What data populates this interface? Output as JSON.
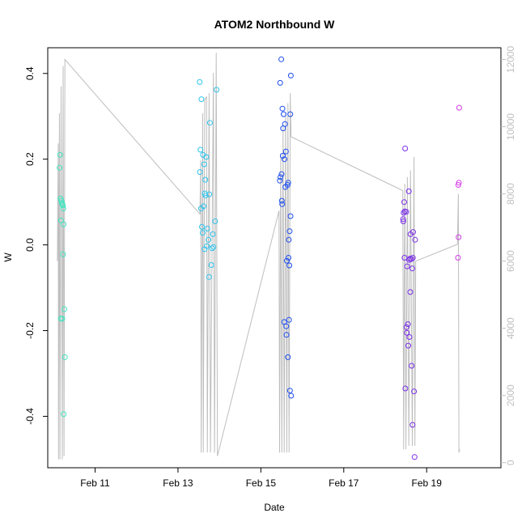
{
  "chart_data": {
    "type": "scatter",
    "title": "ATOM2 Northbound W",
    "xlabel": "Date",
    "ylabel": "W",
    "xlim": [
      "2021-02-09T20:35",
      "2021-02-20T19:00"
    ],
    "ylim": [
      -0.52,
      0.46
    ],
    "y2lim": [
      -150,
      12350
    ],
    "x_ticks": [
      {
        "date": "2021-02-11",
        "label": "Feb 11"
      },
      {
        "date": "2021-02-13",
        "label": "Feb 13"
      },
      {
        "date": "2021-02-15",
        "label": "Feb 15"
      },
      {
        "date": "2021-02-17",
        "label": "Feb 17"
      },
      {
        "date": "2021-02-19",
        "label": "Feb 19"
      }
    ],
    "y_ticks": [
      -0.4,
      -0.2,
      0.0,
      0.2,
      0.4
    ],
    "y_tick_labels": [
      "-0.4",
      "-0.2",
      "0.0",
      "0.2",
      "0.4"
    ],
    "y2_ticks": [
      0,
      2000,
      4000,
      6000,
      8000,
      10000,
      12000
    ],
    "y2_tick_labels": [
      "0",
      "2000",
      "4000",
      "6000",
      "8000",
      "10000",
      "12000"
    ],
    "grid": false,
    "colors": {
      "line": "#bebebe",
      "groups": [
        "#3ee6c0",
        "#2fc4ee",
        "#1f4eee",
        "#7a2ee8",
        "#d43ce8"
      ]
    },
    "series": [
      {
        "points": [
          [
            "2021-02-10T03:25",
            0.18
          ],
          [
            "2021-02-10T03:45",
            0.21
          ],
          [
            "2021-02-10T04:00",
            0.108
          ],
          [
            "2021-02-10T04:30",
            0.103
          ],
          [
            "2021-02-10T04:45",
            0.098
          ],
          [
            "2021-02-10T05:05",
            0.095
          ],
          [
            "2021-02-10T05:20",
            0.092
          ],
          [
            "2021-02-10T05:35",
            0.085
          ],
          [
            "2021-02-10T04:15",
            0.057
          ],
          [
            "2021-02-10T05:45",
            0.048
          ],
          [
            "2021-02-10T05:30",
            -0.022
          ],
          [
            "2021-02-10T04:10",
            -0.172
          ],
          [
            "2021-02-10T05:00",
            -0.172
          ],
          [
            "2021-02-10T06:10",
            -0.15
          ],
          [
            "2021-02-10T06:30",
            -0.262
          ],
          [
            "2021-02-10T05:50",
            -0.395
          ]
        ]
      },
      {
        "points": [
          [
            "2021-02-13T12:35",
            0.38
          ],
          [
            "2021-02-13T13:35",
            0.34
          ],
          [
            "2021-02-13T22:20",
            0.362
          ],
          [
            "2021-02-13T18:30",
            0.285
          ],
          [
            "2021-02-13T13:00",
            0.222
          ],
          [
            "2021-02-13T14:30",
            0.21
          ],
          [
            "2021-02-13T16:20",
            0.205
          ],
          [
            "2021-02-13T15:10",
            0.188
          ],
          [
            "2021-02-13T12:45",
            0.17
          ],
          [
            "2021-02-13T15:50",
            0.152
          ],
          [
            "2021-02-13T15:30",
            0.12
          ],
          [
            "2021-02-13T18:10",
            0.118
          ],
          [
            "2021-02-13T16:00",
            0.115
          ],
          [
            "2021-02-13T14:50",
            0.09
          ],
          [
            "2021-02-13T13:20",
            0.085
          ],
          [
            "2021-02-13T21:30",
            0.055
          ],
          [
            "2021-02-13T13:50",
            0.042
          ],
          [
            "2021-02-13T17:00",
            0.038
          ],
          [
            "2021-02-13T14:20",
            0.028
          ],
          [
            "2021-02-13T20:10",
            0.025
          ],
          [
            "2021-02-13T17:40",
            0.012
          ],
          [
            "2021-02-13T16:40",
            -0.003
          ],
          [
            "2021-02-13T15:20",
            -0.01
          ],
          [
            "2021-02-13T19:40",
            -0.008
          ],
          [
            "2021-02-13T20:30",
            -0.005
          ],
          [
            "2021-02-13T19:20",
            -0.047
          ],
          [
            "2021-02-13T18:00",
            -0.075
          ]
        ]
      },
      {
        "points": [
          [
            "2021-02-15T11:50",
            0.433
          ],
          [
            "2021-02-15T11:10",
            0.378
          ],
          [
            "2021-02-15T17:20",
            0.395
          ],
          [
            "2021-02-15T12:30",
            0.318
          ],
          [
            "2021-02-15T13:10",
            0.305
          ],
          [
            "2021-02-15T17:00",
            0.305
          ],
          [
            "2021-02-15T14:00",
            0.282
          ],
          [
            "2021-02-15T12:50",
            0.272
          ],
          [
            "2021-02-15T14:30",
            0.218
          ],
          [
            "2021-02-15T12:40",
            0.208
          ],
          [
            "2021-02-15T13:40",
            0.2
          ],
          [
            "2021-02-15T11:20",
            0.158
          ],
          [
            "2021-02-15T12:00",
            0.165
          ],
          [
            "2021-02-15T11:00",
            0.15
          ],
          [
            "2021-02-15T15:50",
            0.145
          ],
          [
            "2021-02-15T15:30",
            0.14
          ],
          [
            "2021-02-15T14:10",
            0.135
          ],
          [
            "2021-02-15T12:10",
            0.103
          ],
          [
            "2021-02-15T12:20",
            0.095
          ],
          [
            "2021-02-15T17:10",
            0.067
          ],
          [
            "2021-02-15T16:40",
            0.032
          ],
          [
            "2021-02-15T16:10",
            0.012
          ],
          [
            "2021-02-15T16:00",
            -0.03
          ],
          [
            "2021-02-15T15:00",
            -0.037
          ],
          [
            "2021-02-15T16:30",
            -0.048
          ],
          [
            "2021-02-15T16:20",
            -0.175
          ],
          [
            "2021-02-15T13:30",
            -0.18
          ],
          [
            "2021-02-15T14:40",
            -0.19
          ],
          [
            "2021-02-15T14:50",
            -0.21
          ],
          [
            "2021-02-15T15:40",
            -0.262
          ],
          [
            "2021-02-15T16:50",
            -0.34
          ],
          [
            "2021-02-15T17:30",
            -0.352
          ]
        ]
      },
      {
        "points": [
          [
            "2021-02-18T11:30",
            0.225
          ],
          [
            "2021-02-18T13:40",
            0.125
          ],
          [
            "2021-02-18T11:00",
            0.1
          ],
          [
            "2021-02-18T10:40",
            0.075
          ],
          [
            "2021-02-18T11:20",
            0.078
          ],
          [
            "2021-02-18T12:10",
            0.077
          ],
          [
            "2021-02-18T10:20",
            0.06
          ],
          [
            "2021-02-18T10:30",
            0.055
          ],
          [
            "2021-02-18T16:10",
            0.03
          ],
          [
            "2021-02-18T14:40",
            0.025
          ],
          [
            "2021-02-18T17:20",
            0.012
          ],
          [
            "2021-02-18T11:10",
            -0.03
          ],
          [
            "2021-02-18T13:50",
            -0.035
          ],
          [
            "2021-02-18T14:20",
            -0.032
          ],
          [
            "2021-02-18T15:10",
            -0.033
          ],
          [
            "2021-02-18T16:00",
            -0.03
          ],
          [
            "2021-02-18T12:40",
            -0.05
          ],
          [
            "2021-02-18T15:40",
            -0.055
          ],
          [
            "2021-02-18T14:30",
            -0.11
          ],
          [
            "2021-02-18T13:10",
            -0.185
          ],
          [
            "2021-02-18T12:20",
            -0.192
          ],
          [
            "2021-02-18T12:30",
            -0.205
          ],
          [
            "2021-02-18T14:00",
            -0.215
          ],
          [
            "2021-02-18T13:20",
            -0.235
          ],
          [
            "2021-02-18T15:20",
            -0.282
          ],
          [
            "2021-02-18T11:40",
            -0.335
          ],
          [
            "2021-02-18T16:40",
            -0.342
          ],
          [
            "2021-02-18T15:50",
            -0.42
          ],
          [
            "2021-02-18T17:00",
            -0.495
          ]
        ]
      },
      {
        "points": [
          [
            "2021-02-19T18:50",
            0.32
          ],
          [
            "2021-02-19T18:40",
            0.145
          ],
          [
            "2021-02-19T18:20",
            0.14
          ],
          [
            "2021-02-19T18:30",
            0.018
          ],
          [
            "2021-02-19T18:10",
            -0.03
          ]
        ]
      }
    ],
    "line_y2": [
      [
        "2021-02-10T02:10",
        6000
      ],
      [
        "2021-02-10T02:40",
        9500
      ],
      [
        "2021-02-10T02:50",
        100
      ],
      [
        "2021-02-10T03:20",
        10400
      ],
      [
        "2021-02-10T03:40",
        100
      ],
      [
        "2021-02-10T04:20",
        11200
      ],
      [
        "2021-02-10T05:00",
        100
      ],
      [
        "2021-02-10T05:30",
        11800
      ],
      [
        "2021-02-10T06:00",
        200
      ],
      [
        "2021-02-10T06:30",
        12000
      ],
      [
        "2021-02-13T12:45",
        7400
      ],
      [
        "2021-02-13T13:10",
        9000
      ],
      [
        "2021-02-13T13:25",
        300
      ],
      [
        "2021-02-13T14:20",
        10400
      ],
      [
        "2021-02-13T14:40",
        300
      ],
      [
        "2021-02-13T15:30",
        10800
      ],
      [
        "2021-02-13T16:30",
        10900
      ],
      [
        "2021-02-13T17:00",
        300
      ],
      [
        "2021-02-13T18:00",
        11000
      ],
      [
        "2021-02-13T18:50",
        300
      ],
      [
        "2021-02-13T20:30",
        11600
      ],
      [
        "2021-02-13T21:10",
        300
      ],
      [
        "2021-02-13T22:10",
        12200
      ],
      [
        "2021-02-13T22:50",
        200
      ],
      [
        "2021-02-15T10:30",
        7500
      ],
      [
        "2021-02-15T10:50",
        300
      ],
      [
        "2021-02-15T11:30",
        9200
      ],
      [
        "2021-02-15T12:10",
        300
      ],
      [
        "2021-02-15T12:50",
        10000
      ],
      [
        "2021-02-15T13:30",
        300
      ],
      [
        "2021-02-15T14:20",
        10400
      ],
      [
        "2021-02-15T15:00",
        300
      ],
      [
        "2021-02-15T15:40",
        10700
      ],
      [
        "2021-02-15T16:20",
        300
      ],
      [
        "2021-02-15T17:00",
        11000
      ],
      [
        "2021-02-15T17:30",
        9700
      ],
      [
        "2021-02-18T10:10",
        8100
      ],
      [
        "2021-02-18T10:40",
        400
      ],
      [
        "2021-02-18T11:20",
        8300
      ],
      [
        "2021-02-18T12:00",
        400
      ],
      [
        "2021-02-18T12:50",
        8500
      ],
      [
        "2021-02-18T13:40",
        500
      ],
      [
        "2021-02-18T14:40",
        8700
      ],
      [
        "2021-02-18T15:40",
        500
      ],
      [
        "2021-02-18T16:40",
        9100
      ],
      [
        "2021-02-18T17:10",
        500
      ],
      [
        "2021-02-18T17:40",
        6000
      ],
      [
        "2021-02-19T17:50",
        6500
      ],
      [
        "2021-02-19T18:20",
        8000
      ],
      [
        "2021-02-19T18:40",
        300
      ],
      [
        "2021-02-19T19:10",
        400
      ]
    ]
  }
}
